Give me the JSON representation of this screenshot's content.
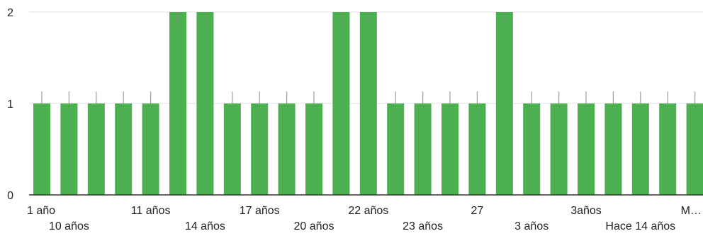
{
  "chart_data": {
    "type": "bar",
    "title": "",
    "xlabel": "",
    "ylabel": "",
    "ylim": [
      0,
      2
    ],
    "yticks": [
      "0",
      "1",
      "2"
    ],
    "grid": true,
    "legend": "none",
    "bar_color": "#4caf50",
    "error_bar_color": "#9e9e9e",
    "categories": [
      "1 año",
      "10 años",
      "",
      "",
      "11 años",
      "",
      "14 años",
      "",
      "17 años",
      "",
      "20 años",
      "",
      "22 años",
      "",
      "23 años",
      "",
      "27",
      "",
      "3 años",
      "",
      "3años",
      "",
      "Hace 14 años",
      "",
      "M…"
    ],
    "values": [
      1,
      1,
      1,
      1,
      1,
      2,
      2,
      1,
      1,
      1,
      1,
      2,
      2,
      1,
      1,
      1,
      1,
      2,
      1,
      1,
      1,
      1,
      1,
      1,
      1
    ],
    "error_tops": [
      1.13,
      1.13,
      1.13,
      1.13,
      1.13,
      1.87,
      1.87,
      1.13,
      1.13,
      1.13,
      1.13,
      1.87,
      1.87,
      1.13,
      1.13,
      1.13,
      1.13,
      1.87,
      1.13,
      1.13,
      1.13,
      1.13,
      1.13,
      1.13,
      1.13
    ]
  }
}
